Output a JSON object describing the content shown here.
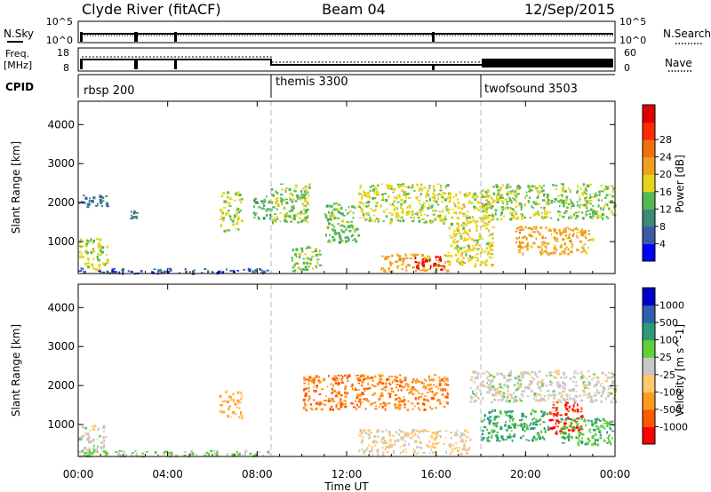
{
  "header": {
    "station": "Clyde River (fitACF)",
    "beam": "Beam 04",
    "date": "12/Sep/2015"
  },
  "noise_panel": {
    "left_label": "N.Sky",
    "right_label": "N.Search",
    "left_ticks": [
      "10^5",
      "10^0"
    ],
    "right_ticks": [
      "10^5",
      "10^0"
    ]
  },
  "freq_panel": {
    "left_label_1": "Freq.",
    "left_label_2": "[MHz]",
    "left_ticks": [
      "18",
      "8"
    ],
    "right_label": "Nave",
    "right_ticks": [
      "60",
      "0"
    ]
  },
  "cpid_panel": {
    "label": "CPID",
    "segments": [
      {
        "name": "rbsp 200",
        "start_h": 0
      },
      {
        "name": "themis 3300",
        "start_h": 8.5
      },
      {
        "name": "twofsound 3503",
        "start_h": 18
      }
    ]
  },
  "time_axis": {
    "ticks": [
      "00:00",
      "04:00",
      "08:00",
      "12:00",
      "16:00",
      "20:00",
      "00:00"
    ],
    "title": "Time UT"
  },
  "colors": {
    "power": [
      "#0000ff",
      "#3a5aa8",
      "#3b8a7a",
      "#55b855",
      "#e6d41a",
      "#f0a020",
      "#f07010",
      "#ff2a00",
      "#e00000"
    ],
    "velocity": [
      "#ff0000",
      "#ff5a00",
      "#ff9a20",
      "#ffc86e",
      "#c8c8c8",
      "#5fcf3c",
      "#2f9a78",
      "#2f5fae",
      "#0000c8"
    ]
  },
  "chart_data": [
    {
      "type": "heatmap",
      "title": "",
      "xlabel": "Time UT",
      "ylabel": "Slant Range [km]",
      "xlim": [
        0,
        24
      ],
      "ylim": [
        180,
        4600
      ],
      "yticks": [
        1000,
        2000,
        3000,
        4000
      ],
      "colorbar": {
        "label": "Power [dB]",
        "ticks": [
          "4",
          "8",
          "12",
          "16",
          "20",
          "24",
          "28"
        ],
        "range": [
          0,
          30
        ]
      },
      "regions": [
        {
          "t": [
            0.0,
            1.3
          ],
          "r": [
            300,
            1100
          ],
          "v": 14
        },
        {
          "t": [
            0.0,
            1.3
          ],
          "r": [
            1900,
            2200
          ],
          "v": 6
        },
        {
          "t": [
            0.0,
            8.6
          ],
          "r": [
            200,
            330
          ],
          "v": 5
        },
        {
          "t": [
            2.3,
            2.6
          ],
          "r": [
            1600,
            1800
          ],
          "v": 8
        },
        {
          "t": [
            6.3,
            7.3
          ],
          "r": [
            1300,
            2300
          ],
          "v": 14
        },
        {
          "t": [
            7.8,
            8.6
          ],
          "r": [
            1600,
            2200
          ],
          "v": 11
        },
        {
          "t": [
            8.6,
            10.3
          ],
          "r": [
            1500,
            2500
          ],
          "v": 13
        },
        {
          "t": [
            9.5,
            10.8
          ],
          "r": [
            250,
            900
          ],
          "v": 13
        },
        {
          "t": [
            11.0,
            12.5
          ],
          "r": [
            1000,
            2000
          ],
          "v": 12
        },
        {
          "t": [
            12.5,
            16.5
          ],
          "r": [
            1500,
            2500
          ],
          "v": 14
        },
        {
          "t": [
            13.5,
            16.5
          ],
          "r": [
            250,
            700
          ],
          "v": 18
        },
        {
          "t": [
            15.0,
            16.3
          ],
          "r": [
            300,
            650
          ],
          "v": 27
        },
        {
          "t": [
            16.5,
            18.5
          ],
          "r": [
            400,
            2300
          ],
          "v": 15
        },
        {
          "t": [
            18.0,
            24.0
          ],
          "r": [
            1600,
            2500
          ],
          "v": 13
        },
        {
          "t": [
            19.5,
            23.0
          ],
          "r": [
            700,
            1400
          ],
          "v": 18
        }
      ]
    },
    {
      "type": "heatmap",
      "title": "",
      "xlabel": "Time UT",
      "ylabel": "Slant Range [km]",
      "xlim": [
        0,
        24
      ],
      "ylim": [
        180,
        4600
      ],
      "yticks": [
        1000,
        2000,
        3000,
        4000
      ],
      "colorbar": {
        "label": "Velocity [m s^-1]",
        "ticks": [
          "-1000",
          "-500",
          "-100",
          "-25",
          "25",
          "100",
          "500",
          "1000"
        ],
        "range": [
          -1000,
          1000
        ]
      },
      "regions": [
        {
          "t": [
            0.0,
            1.2
          ],
          "r": [
            300,
            1000
          ],
          "v": 0
        },
        {
          "t": [
            0.0,
            8.6
          ],
          "r": [
            200,
            350
          ],
          "v": 120
        },
        {
          "t": [
            6.3,
            7.3
          ],
          "r": [
            1200,
            1900
          ],
          "v": -300
        },
        {
          "t": [
            10.0,
            13.0
          ],
          "r": [
            1400,
            2300
          ],
          "v": -600
        },
        {
          "t": [
            13.0,
            16.5
          ],
          "r": [
            1400,
            2300
          ],
          "v": -500
        },
        {
          "t": [
            12.5,
            17.5
          ],
          "r": [
            250,
            900
          ],
          "v": -150
        },
        {
          "t": [
            17.5,
            24.0
          ],
          "r": [
            1600,
            2400
          ],
          "v": 0
        },
        {
          "t": [
            18.0,
            21.0
          ],
          "r": [
            600,
            1400
          ],
          "v": 400
        },
        {
          "t": [
            21.0,
            22.5
          ],
          "r": [
            800,
            1600
          ],
          "v": -800
        },
        {
          "t": [
            21.5,
            24.0
          ],
          "r": [
            500,
            1200
          ],
          "v": 300
        }
      ]
    }
  ]
}
